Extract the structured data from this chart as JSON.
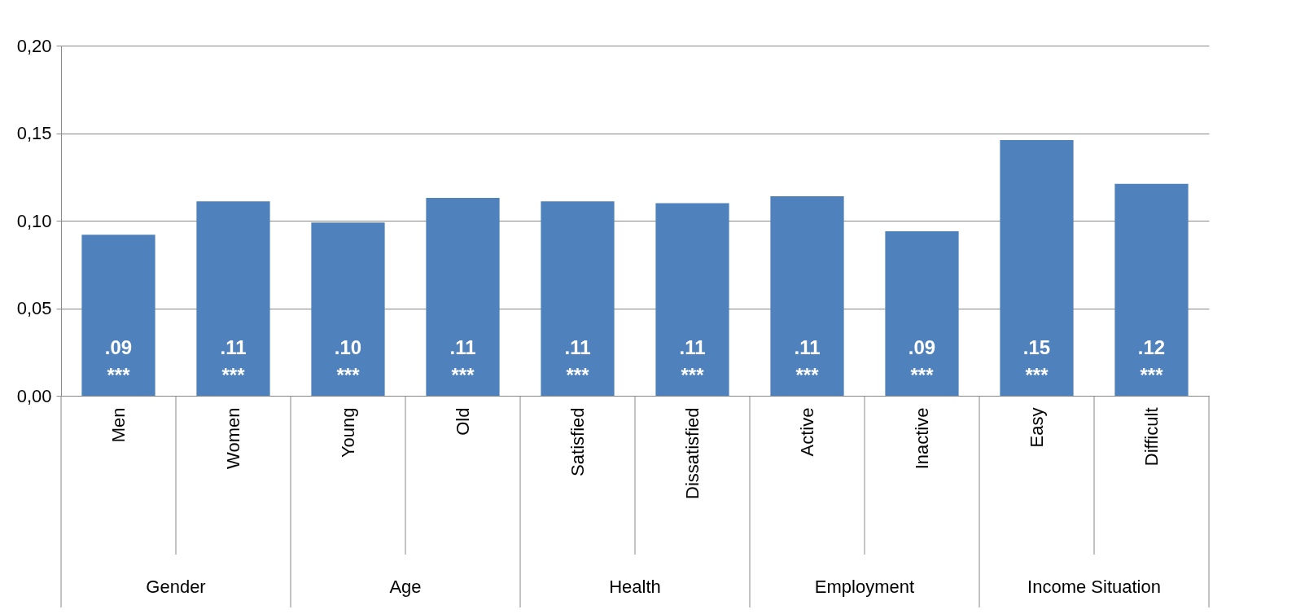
{
  "chart_data": {
    "type": "bar",
    "categories": [
      "Men",
      "Women",
      "Young",
      "Old",
      "Satisfied",
      "Dissatisfied",
      "Active",
      "Inactive",
      "Easy",
      "Difficult"
    ],
    "values": [
      0.092,
      0.111,
      0.099,
      0.113,
      0.111,
      0.11,
      0.114,
      0.094,
      0.146,
      0.121
    ],
    "value_labels": [
      ".09\n***",
      ".11\n***",
      ".10\n***",
      ".11\n***",
      ".11\n***",
      ".11\n***",
      ".11\n***",
      ".09\n***",
      ".15\n***",
      ".12\n***"
    ],
    "color": "#4f81bd",
    "ylim": [
      0,
      0.2
    ],
    "yticks": [
      {
        "value": 0,
        "label": "0,00"
      },
      {
        "value": 0.05,
        "label": "0,05"
      },
      {
        "value": 0.1,
        "label": "0,10"
      },
      {
        "value": 0.15,
        "label": "0,15"
      },
      {
        "value": 0.2,
        "label": "0,20"
      }
    ],
    "grid": "y",
    "annotations": [
      "Gender",
      "Age",
      "Health",
      "Employment",
      "Income Situation"
    ]
  }
}
